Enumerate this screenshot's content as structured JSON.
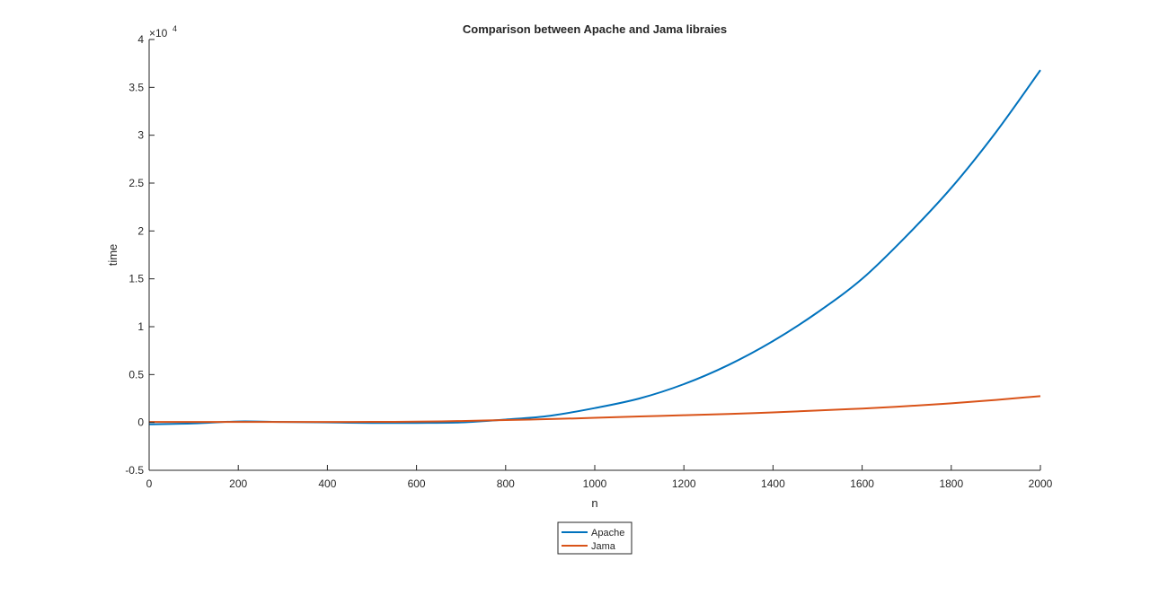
{
  "chart_data": {
    "type": "line",
    "title": "Comparison between Apache and Jama libraies",
    "xlabel": "n",
    "ylabel": "time",
    "xlim": [
      0,
      2000
    ],
    "ylim": [
      -5000,
      40000
    ],
    "y_exponent_label": "×10",
    "y_exponent_power": "4",
    "xticks": [
      0,
      200,
      400,
      600,
      800,
      1000,
      1200,
      1400,
      1600,
      1800,
      2000
    ],
    "xtick_labels": [
      "0",
      "200",
      "400",
      "600",
      "800",
      "1000",
      "1200",
      "1400",
      "1600",
      "1800",
      "2000"
    ],
    "yticks": [
      -5000,
      0,
      5000,
      10000,
      15000,
      20000,
      25000,
      30000,
      35000,
      40000
    ],
    "ytick_labels": [
      "-0.5",
      "0",
      "0.5",
      "1",
      "1.5",
      "2",
      "2.5",
      "3",
      "3.5",
      "4"
    ],
    "grid": false,
    "legend_position": "bottom-center",
    "series": [
      {
        "name": "Apache",
        "color": "#0072BD",
        "x": [
          0,
          100,
          200,
          300,
          400,
          500,
          600,
          700,
          800,
          900,
          1000,
          1100,
          1200,
          1300,
          1400,
          1500,
          1600,
          1700,
          1800,
          1900,
          2000
        ],
        "y": [
          -200,
          -100,
          100,
          50,
          0,
          -50,
          -50,
          0,
          300,
          700,
          1500,
          2500,
          4000,
          6000,
          8500,
          11500,
          15000,
          19500,
          24500,
          30300,
          36800
        ]
      },
      {
        "name": "Jama",
        "color": "#D95319",
        "x": [
          0,
          100,
          200,
          300,
          400,
          500,
          600,
          700,
          800,
          900,
          1000,
          1100,
          1200,
          1300,
          1400,
          1500,
          1600,
          1700,
          1800,
          1900,
          2000
        ],
        "y": [
          50,
          50,
          50,
          50,
          50,
          60,
          80,
          150,
          250,
          350,
          480,
          620,
          750,
          880,
          1050,
          1250,
          1450,
          1700,
          2000,
          2350,
          2750
        ]
      }
    ]
  }
}
